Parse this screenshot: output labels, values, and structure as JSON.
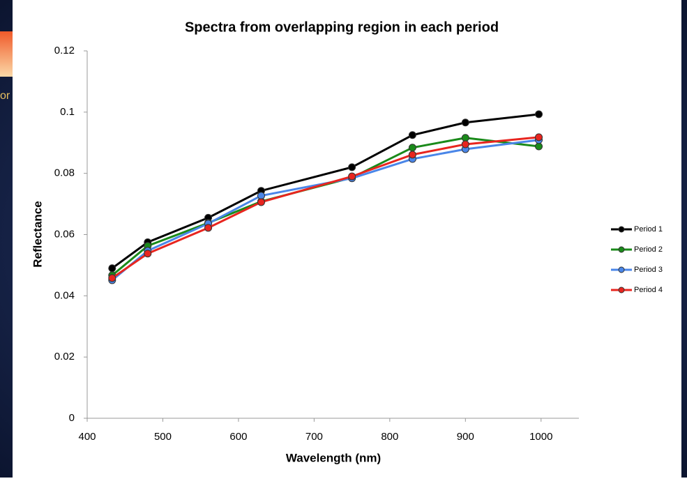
{
  "background": {
    "fragment": "or"
  },
  "chart_data": {
    "type": "line",
    "title": "Spectra from overlapping region in each period",
    "x_label": "Wavelength (nm)",
    "y_label": "Reflectance",
    "x": [
      433,
      480,
      560,
      630,
      750,
      830,
      900,
      997
    ],
    "series": [
      {
        "name": "Period 1",
        "color": "#000000",
        "values": [
          0.049,
          0.0575,
          0.0655,
          0.0743,
          0.082,
          0.0925,
          0.0966,
          0.0993
        ]
      },
      {
        "name": "Period 2",
        "color": "#1a8a1a",
        "values": [
          0.0467,
          0.0563,
          0.0638,
          0.0708,
          0.0786,
          0.0884,
          0.0916,
          0.0888
        ]
      },
      {
        "name": "Period 3",
        "color": "#4a86e8",
        "values": [
          0.0451,
          0.0547,
          0.0636,
          0.0727,
          0.0784,
          0.0847,
          0.0879,
          0.0909
        ]
      },
      {
        "name": "Period 4",
        "color": "#e8251f",
        "values": [
          0.0458,
          0.0538,
          0.0622,
          0.0706,
          0.079,
          0.0861,
          0.0895,
          0.0918
        ]
      }
    ],
    "xlim": [
      400,
      1050
    ],
    "xticks": [
      400,
      500,
      600,
      700,
      800,
      900,
      1000
    ],
    "ylim": [
      0,
      0.12
    ],
    "yticks": [
      0,
      0.02,
      0.04,
      0.06,
      0.08,
      0.1,
      0.12
    ],
    "grid": false,
    "legend": "right"
  }
}
